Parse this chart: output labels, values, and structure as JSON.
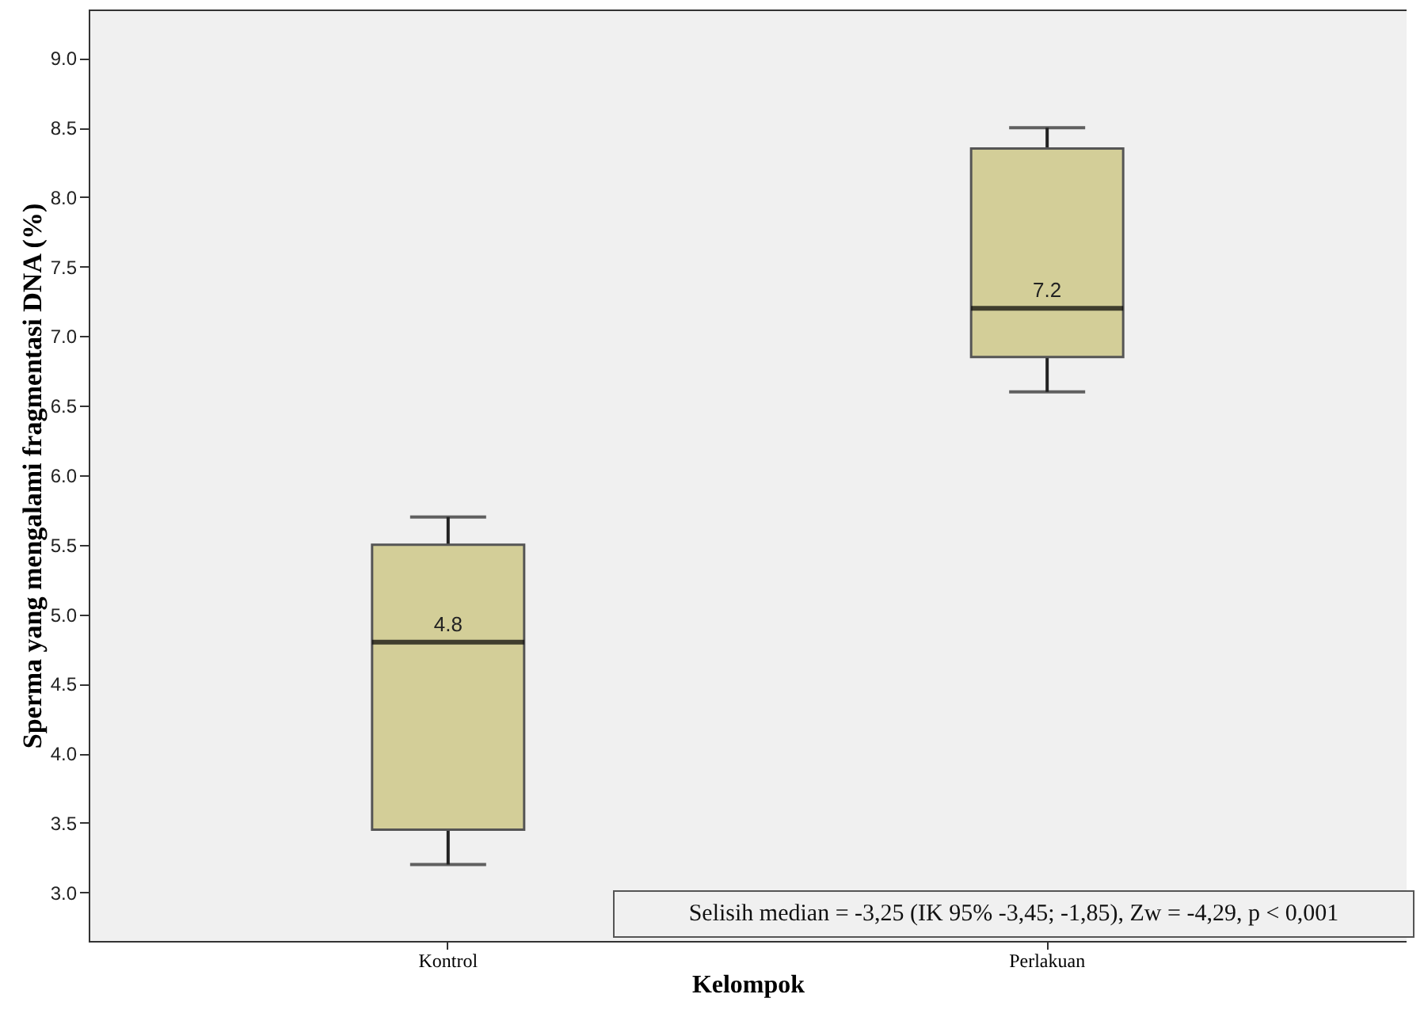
{
  "chart_data": {
    "type": "box",
    "xlabel": "Kelompok",
    "ylabel": "Sperma yang mengalami fragmentasi DNA (%)",
    "categories": [
      "Kontrol",
      "Perlakuan"
    ],
    "series": [
      {
        "color": "#d3ce98",
        "boxes": [
          {
            "low": 3.2,
            "q1": 3.45,
            "median": 4.8,
            "q3": 5.5,
            "high": 5.7
          },
          {
            "low": 6.6,
            "q1": 6.85,
            "median": 7.2,
            "q3": 8.35,
            "high": 8.5
          }
        ]
      }
    ],
    "ylim": [
      2.65,
      9.35
    ],
    "yticks": [
      {
        "value": 3,
        "label": "3.0"
      },
      3.5,
      {
        "value": 4,
        "label": "4.0"
      },
      4.5,
      {
        "value": 5,
        "label": "5.0"
      },
      5.5,
      {
        "value": 6,
        "label": "6.0"
      },
      6.5,
      {
        "value": 7,
        "label": "7.0"
      },
      7.5,
      {
        "value": 8,
        "label": "8.0"
      },
      8.5,
      {
        "value": 9,
        "label": "9.0"
      }
    ],
    "annotations": [
      {
        "text": "4.8",
        "x": "Kontrol",
        "y": 4.8
      },
      {
        "text": "7.2",
        "x": "Perlakuan",
        "y": 7.2
      },
      "Selisih median = -3,25 (IK 95% -3,45; -1,85), Zw = -4,29, p < 0,001"
    ]
  }
}
